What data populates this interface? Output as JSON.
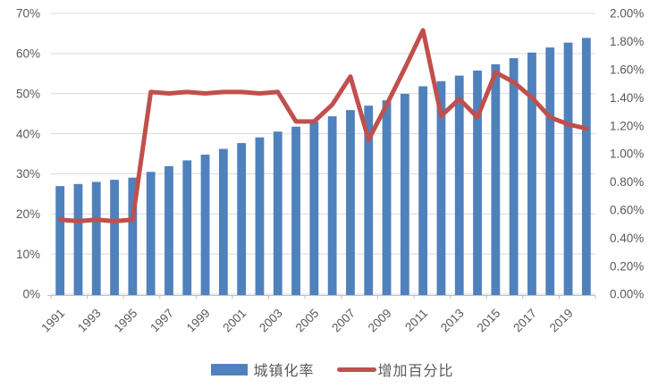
{
  "chart_data": {
    "type": "combo",
    "title": "",
    "categories": [
      1991,
      1992,
      1993,
      1994,
      1995,
      1996,
      1997,
      1998,
      1999,
      2000,
      2001,
      2002,
      2003,
      2004,
      2005,
      2006,
      2007,
      2008,
      2009,
      2010,
      2011,
      2012,
      2013,
      2014,
      2015,
      2016,
      2017,
      2018,
      2019,
      2020
    ],
    "x_tick_labels": [
      "1991",
      "1993",
      "1995",
      "1997",
      "1999",
      "2001",
      "2003",
      "2005",
      "2007",
      "2009",
      "2011",
      "2013",
      "2015",
      "2017",
      "2019"
    ],
    "series": [
      {
        "name": "城镇化率",
        "type": "bar",
        "axis": "left",
        "color": "#4F81BD",
        "values": [
          26.94,
          27.46,
          27.99,
          28.51,
          29.04,
          30.48,
          31.91,
          33.35,
          34.78,
          36.22,
          37.66,
          39.09,
          40.53,
          41.76,
          42.99,
          44.34,
          45.89,
          46.99,
          48.34,
          49.95,
          51.83,
          53.1,
          54.49,
          55.75,
          57.33,
          58.84,
          60.24,
          61.5,
          62.71,
          63.89
        ]
      },
      {
        "name": "增加百分比",
        "type": "line",
        "axis": "right",
        "color": "#C0504D",
        "values": [
          0.53,
          0.52,
          0.53,
          0.52,
          0.53,
          1.44,
          1.43,
          1.44,
          1.43,
          1.44,
          1.44,
          1.43,
          1.44,
          1.23,
          1.23,
          1.35,
          1.55,
          1.1,
          1.35,
          1.61,
          1.88,
          1.27,
          1.39,
          1.26,
          1.58,
          1.51,
          1.4,
          1.26,
          1.21,
          1.18
        ]
      }
    ],
    "left_axis": {
      "min": 0,
      "max": 70,
      "step": 10,
      "tick_labels": [
        "0%",
        "10%",
        "20%",
        "30%",
        "40%",
        "50%",
        "60%",
        "70%"
      ]
    },
    "right_axis": {
      "min": 0,
      "max": 2,
      "step": 0.2,
      "tick_labels": [
        "0.00%",
        "0.20%",
        "0.40%",
        "0.60%",
        "0.80%",
        "1.00%",
        "1.20%",
        "1.40%",
        "1.60%",
        "1.80%",
        "2.00%"
      ]
    },
    "grid": "horizontal",
    "legend_position": "bottom",
    "colors": {
      "bar": "#4F81BD",
      "line": "#C0504D",
      "gridline": "#D9D9D9",
      "axis_line": "#BFBFBF",
      "tick_text": "#595959",
      "background": "#FFFFFF"
    }
  }
}
